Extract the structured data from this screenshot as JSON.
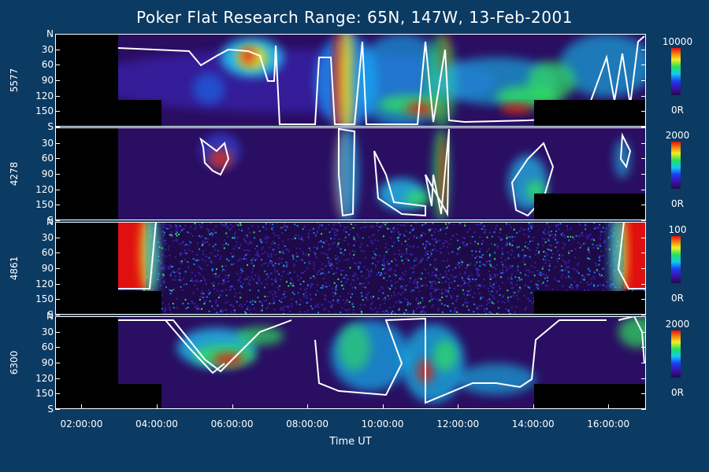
{
  "chart_data": {
    "type": "heatmap",
    "title": "Poker Flat Research Range: 65N, 147W, 13-Feb-2001",
    "xlabel": "Time UT",
    "x_ticks": [
      "02:00:00",
      "04:00:00",
      "06:00:00",
      "08:00:00",
      "10:00:00",
      "12:00:00",
      "14:00:00",
      "16:00:00"
    ],
    "x_range_hours": [
      1.3,
      17.0
    ],
    "y_ticks": [
      "N",
      "30",
      "60",
      "90",
      "120",
      "150",
      "S"
    ],
    "panels": [
      {
        "channel": "5577",
        "colorbar_max": "10000",
        "colorbar_min": "0R"
      },
      {
        "channel": "4278",
        "colorbar_max": "2000",
        "colorbar_min": "0R"
      },
      {
        "channel": "4861",
        "colorbar_max": "100",
        "colorbar_min": "0R"
      },
      {
        "channel": "6300",
        "colorbar_max": "2000",
        "colorbar_min": "0R"
      }
    ]
  }
}
